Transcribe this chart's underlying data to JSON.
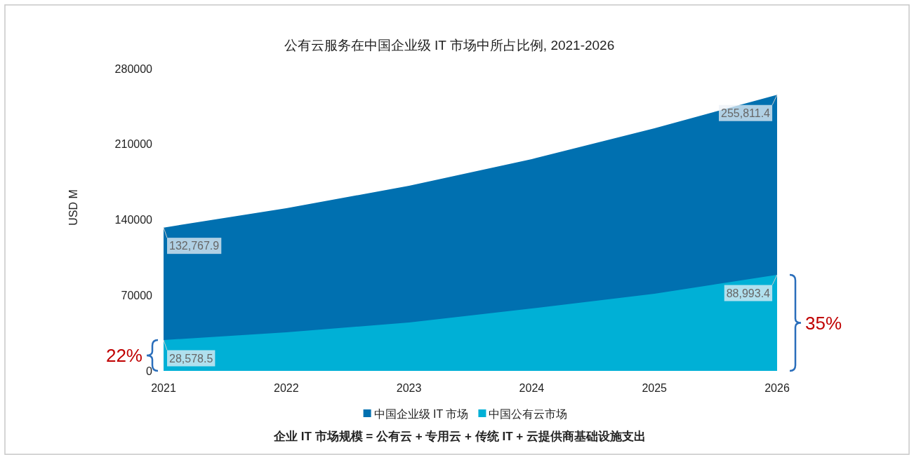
{
  "chart_data": {
    "type": "area",
    "title": "公有云服务在中国企业级 IT 市场中所占比例, 2021-2026",
    "ylabel": "USD M",
    "x": [
      2021,
      2022,
      2023,
      2024,
      2025,
      2026
    ],
    "series": [
      {
        "name": "中国企业级 IT 市场",
        "color": "#0070b0",
        "values": [
          132767.9,
          150700,
          171500,
          196200,
          224800,
          255811.4
        ],
        "value_labels": [
          "132,767.9",
          null,
          null,
          null,
          null,
          "255,811.4"
        ]
      },
      {
        "name": "中国公有云市场",
        "color": "#00b0d6",
        "values": [
          28578.5,
          35700,
          44800,
          57800,
          71500,
          88993.4
        ],
        "value_labels": [
          "28,578.5",
          null,
          null,
          null,
          null,
          "88,993.4"
        ]
      }
    ],
    "xlim": [
      2021,
      2026
    ],
    "xticks": [
      2021,
      2022,
      2023,
      2024,
      2025,
      2026
    ],
    "ylim": [
      0,
      280000
    ],
    "yticks": [
      0,
      70000,
      140000,
      210000,
      280000
    ],
    "legend": "bottom",
    "grid": false,
    "annotations": [
      {
        "text": "22%",
        "x": 2021,
        "y": 28578.5
      },
      {
        "text": "35%",
        "x": 2026,
        "y": 88993.4
      },
      "企业 IT 市场规模 = 公有云 + 专用云 + 传统 IT + 云提供商基础设施支出"
    ]
  }
}
